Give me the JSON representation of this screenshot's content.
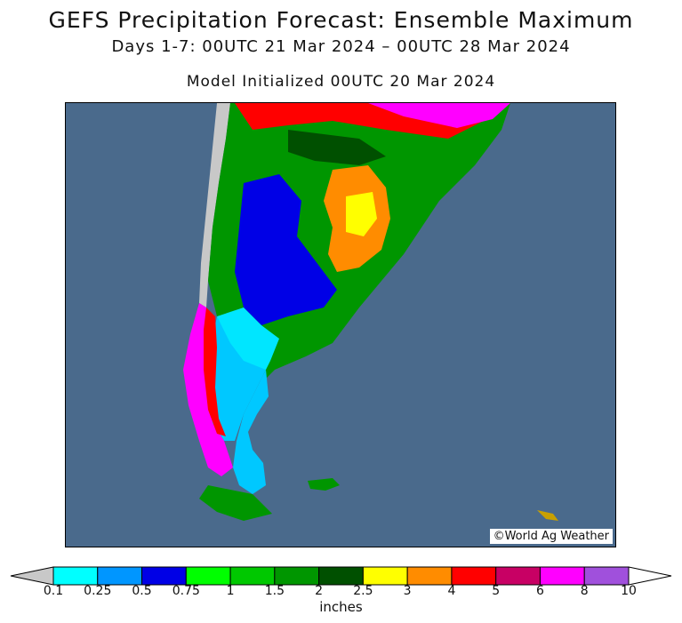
{
  "title": "GEFS Precipitation Forecast: Ensemble Maximum",
  "subtitle": "Days 1-7: 00UTC 21 Mar 2024 – 00UTC 28 Mar 2024",
  "init": "Model Initialized 00UTC 20 Mar 2024",
  "credit": "©World Ag Weather",
  "legend": {
    "units": "inches",
    "ticks": [
      "0.1",
      "0.25",
      "0.5",
      "0.75",
      "1",
      "1.5",
      "2",
      "2.5",
      "3",
      "4",
      "5",
      "6",
      "8",
      "10"
    ],
    "colors": [
      "#c8c8c8",
      "#00ffff",
      "#0096ff",
      "#0000e6",
      "#00ff00",
      "#00c800",
      "#009600",
      "#005000",
      "#ffff00",
      "#ff8c00",
      "#ff0000",
      "#c80064",
      "#ff00ff",
      "#a050dc",
      "#ffffff"
    ]
  },
  "map": {
    "ocean_color": "#4a6a8c",
    "land_color": "#dcdcdc",
    "region": "Southern South America (Argentina, Chile, Uruguay, southern Brazil)"
  }
}
